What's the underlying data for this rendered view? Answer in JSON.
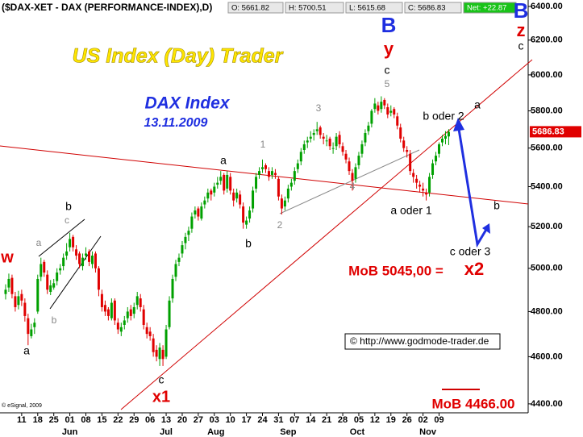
{
  "chart_data": {
    "type": "candlestick",
    "legend_header": {
      "title": "($DAX-XET - DAX (PERFORMANCE-INDEX),D)",
      "fields": [
        "O: 5661.82",
        "H: 5700.51",
        "L: 5615.68",
        "C: 5686.83",
        "Net: +22.87"
      ]
    },
    "log_scale": true,
    "ylim": [
      4363,
      6439
    ],
    "xlim": [
      -1.75,
      162.75
    ],
    "yticks": [
      {
        "value": 4400,
        "label": "4400.00"
      },
      {
        "value": 4600,
        "label": "4600.00"
      },
      {
        "value": 4800,
        "label": "4800.00"
      },
      {
        "value": 5000,
        "label": "5000.00"
      },
      {
        "value": 5200,
        "label": "5200.00"
      },
      {
        "value": 5400,
        "label": "5400.00"
      },
      {
        "value": 5600,
        "label": "5600.00"
      },
      {
        "value": 5800,
        "label": "5800.00"
      },
      {
        "value": 6000,
        "label": "6000.00"
      },
      {
        "value": 6200,
        "label": "6200.00"
      },
      {
        "value": 6400,
        "label": "6400.00"
      }
    ],
    "xticks": [
      {
        "value": 5,
        "label": "11"
      },
      {
        "value": 10,
        "label": "18"
      },
      {
        "value": 15,
        "label": "25"
      },
      {
        "value": 20,
        "label": "01"
      },
      {
        "value": 25,
        "label": "08"
      },
      {
        "value": 30,
        "label": "15"
      },
      {
        "value": 35,
        "label": "22"
      },
      {
        "value": 40,
        "label": "29"
      },
      {
        "value": 45,
        "label": "06"
      },
      {
        "value": 50,
        "label": "13"
      },
      {
        "value": 55,
        "label": "20"
      },
      {
        "value": 60,
        "label": "27"
      },
      {
        "value": 65,
        "label": "03"
      },
      {
        "value": 70,
        "label": "10"
      },
      {
        "value": 75,
        "label": "17"
      },
      {
        "value": 80,
        "label": "24"
      },
      {
        "value": 85,
        "label": "31"
      },
      {
        "value": 90,
        "label": "07"
      },
      {
        "value": 95,
        "label": "14"
      },
      {
        "value": 100,
        "label": "21"
      },
      {
        "value": 105,
        "label": "28"
      },
      {
        "value": 110,
        "label": "05"
      },
      {
        "value": 115,
        "label": "12"
      },
      {
        "value": 120,
        "label": "19"
      },
      {
        "value": 125,
        "label": "26"
      },
      {
        "value": 130,
        "label": "02"
      },
      {
        "value": 135,
        "label": "09"
      }
    ],
    "months": [
      {
        "value": 20,
        "label": "Jun"
      },
      {
        "value": 50,
        "label": "Jul"
      },
      {
        "value": 65.5,
        "label": "Aug"
      },
      {
        "value": 88,
        "label": "Sep"
      },
      {
        "value": 109.5,
        "label": "Oct"
      },
      {
        "value": 131.5,
        "label": "Nov"
      }
    ],
    "up_color": "#00a000",
    "down_color": "#e00000",
    "price_tag": 5686.83,
    "candles": [
      [
        4880,
        4925,
        4855,
        4900
      ],
      [
        4910,
        4975,
        4890,
        4950
      ],
      [
        4955,
        4970,
        4860,
        4880
      ],
      [
        4870,
        4890,
        4800,
        4820
      ],
      [
        4830,
        4895,
        4810,
        4870
      ],
      [
        4880,
        4900,
        4825,
        4850
      ],
      [
        4840,
        4860,
        4755,
        4780
      ],
      [
        4770,
        4790,
        4650,
        4700
      ],
      [
        4690,
        4745,
        4680,
        4720
      ],
      [
        4730,
        4770,
        4700,
        4750
      ],
      [
        4800,
        4970,
        4790,
        4950
      ],
      [
        4960,
        5050,
        4940,
        5020
      ],
      [
        5030,
        5040,
        4960,
        4980
      ],
      [
        4970,
        4990,
        4880,
        4900
      ],
      [
        4890,
        4945,
        4875,
        4920
      ],
      [
        4910,
        4950,
        4900,
        4930
      ],
      [
        4940,
        5000,
        4920,
        4980
      ],
      [
        4990,
        5020,
        4970,
        5000
      ],
      [
        5010,
        5070,
        4990,
        5050
      ],
      [
        5060,
        5120,
        5040,
        5080
      ],
      [
        5100,
        5170,
        5080,
        5140
      ],
      [
        5150,
        5160,
        5080,
        5100
      ],
      [
        5090,
        5110,
        5040,
        5060
      ],
      [
        5070,
        5080,
        5000,
        5020
      ],
      [
        5010,
        5070,
        4990,
        5050
      ],
      [
        5060,
        5100,
        5040,
        5070
      ],
      [
        5080,
        5090,
        5010,
        5030
      ],
      [
        5020,
        5080,
        5000,
        5060
      ],
      [
        5070,
        5080,
        4980,
        5000
      ],
      [
        5000,
        5010,
        4870,
        4900
      ],
      [
        4880,
        4900,
        4800,
        4820
      ],
      [
        4830,
        4850,
        4780,
        4800
      ],
      [
        4810,
        4820,
        4760,
        4780
      ],
      [
        4770,
        4860,
        4760,
        4840
      ],
      [
        4850,
        4860,
        4740,
        4760
      ],
      [
        4750,
        4770,
        4700,
        4720
      ],
      [
        4710,
        4750,
        4690,
        4730
      ],
      [
        4740,
        4780,
        4720,
        4760
      ],
      [
        4770,
        4820,
        4750,
        4800
      ],
      [
        4810,
        4830,
        4760,
        4780
      ],
      [
        4790,
        4840,
        4770,
        4820
      ],
      [
        4830,
        4890,
        4810,
        4870
      ],
      [
        4860,
        4880,
        4800,
        4820
      ],
      [
        4810,
        4830,
        4720,
        4740
      ],
      [
        4730,
        4750,
        4680,
        4700
      ],
      [
        4710,
        4730,
        4670,
        4690
      ],
      [
        4680,
        4700,
        4600,
        4620
      ],
      [
        4630,
        4650,
        4580,
        4600
      ],
      [
        4590,
        4660,
        4560,
        4640
      ],
      [
        4630,
        4650,
        4560,
        4590
      ],
      [
        4600,
        4740,
        4590,
        4720
      ],
      [
        4730,
        4870,
        4720,
        4850
      ],
      [
        4860,
        4970,
        4840,
        4950
      ],
      [
        4960,
        5040,
        4940,
        5020
      ],
      [
        5030,
        5070,
        5010,
        5050
      ],
      [
        5070,
        5130,
        5050,
        5110
      ],
      [
        5120,
        5170,
        5090,
        5150
      ],
      [
        5160,
        5200,
        5130,
        5180
      ],
      [
        5190,
        5270,
        5170,
        5250
      ],
      [
        5260,
        5300,
        5240,
        5280
      ],
      [
        5290,
        5300,
        5230,
        5250
      ],
      [
        5240,
        5320,
        5230,
        5300
      ],
      [
        5310,
        5350,
        5290,
        5330
      ],
      [
        5340,
        5390,
        5320,
        5370
      ],
      [
        5380,
        5390,
        5330,
        5360
      ],
      [
        5370,
        5420,
        5350,
        5400
      ],
      [
        5410,
        5450,
        5390,
        5420
      ],
      [
        5430,
        5480,
        5410,
        5450
      ],
      [
        5460,
        5470,
        5360,
        5380
      ],
      [
        5390,
        5480,
        5370,
        5460
      ],
      [
        5450,
        5470,
        5360,
        5380
      ],
      [
        5370,
        5390,
        5300,
        5330
      ],
      [
        5340,
        5390,
        5320,
        5370
      ],
      [
        5360,
        5380,
        5290,
        5310
      ],
      [
        5300,
        5320,
        5190,
        5220
      ],
      [
        5210,
        5250,
        5190,
        5230
      ],
      [
        5240,
        5300,
        5220,
        5280
      ],
      [
        5290,
        5400,
        5270,
        5380
      ],
      [
        5390,
        5470,
        5370,
        5450
      ],
      [
        5460,
        5500,
        5440,
        5480
      ],
      [
        5490,
        5540,
        5470,
        5500
      ],
      [
        5510,
        5520,
        5470,
        5490
      ],
      [
        5480,
        5500,
        5430,
        5450
      ],
      [
        5460,
        5500,
        5440,
        5480
      ],
      [
        5470,
        5490,
        5440,
        5460
      ],
      [
        5440,
        5450,
        5330,
        5350
      ],
      [
        5340,
        5360,
        5260,
        5290
      ],
      [
        5300,
        5350,
        5280,
        5330
      ],
      [
        5340,
        5410,
        5320,
        5390
      ],
      [
        5400,
        5440,
        5380,
        5420
      ],
      [
        5430,
        5500,
        5410,
        5480
      ],
      [
        5490,
        5540,
        5470,
        5520
      ],
      [
        5530,
        5600,
        5510,
        5580
      ],
      [
        5590,
        5640,
        5570,
        5620
      ],
      [
        5630,
        5660,
        5600,
        5640
      ],
      [
        5650,
        5690,
        5630,
        5660
      ],
      [
        5670,
        5700,
        5640,
        5680
      ],
      [
        5690,
        5740,
        5670,
        5700
      ],
      [
        5710,
        5720,
        5650,
        5670
      ],
      [
        5660,
        5680,
        5620,
        5650
      ],
      [
        5640,
        5670,
        5610,
        5640
      ],
      [
        5650,
        5660,
        5590,
        5610
      ],
      [
        5600,
        5630,
        5570,
        5600
      ],
      [
        5610,
        5680,
        5590,
        5660
      ],
      [
        5670,
        5690,
        5600,
        5620
      ],
      [
        5610,
        5630,
        5560,
        5580
      ],
      [
        5570,
        5590,
        5520,
        5540
      ],
      [
        5530,
        5550,
        5460,
        5480
      ],
      [
        5470,
        5490,
        5380,
        5430
      ],
      [
        5440,
        5520,
        5420,
        5500
      ],
      [
        5510,
        5580,
        5490,
        5560
      ],
      [
        5570,
        5640,
        5550,
        5620
      ],
      [
        5630,
        5700,
        5610,
        5680
      ],
      [
        5690,
        5740,
        5670,
        5720
      ],
      [
        5730,
        5810,
        5710,
        5800
      ],
      [
        5810,
        5870,
        5790,
        5840
      ],
      [
        5830,
        5850,
        5780,
        5800
      ],
      [
        5810,
        5880,
        5790,
        5850
      ],
      [
        5860,
        5870,
        5810,
        5830
      ],
      [
        5820,
        5840,
        5760,
        5780
      ],
      [
        5790,
        5830,
        5770,
        5800
      ],
      [
        5810,
        5820,
        5760,
        5780
      ],
      [
        5770,
        5790,
        5700,
        5720
      ],
      [
        5710,
        5730,
        5630,
        5650
      ],
      [
        5640,
        5660,
        5580,
        5600
      ],
      [
        5590,
        5610,
        5550,
        5580
      ],
      [
        5570,
        5590,
        5460,
        5480
      ],
      [
        5470,
        5490,
        5420,
        5450
      ],
      [
        5440,
        5460,
        5390,
        5420
      ],
      [
        5410,
        5430,
        5370,
        5400
      ],
      [
        5390,
        5420,
        5350,
        5380
      ],
      [
        5370,
        5390,
        5330,
        5360
      ],
      [
        5370,
        5470,
        5350,
        5450
      ],
      [
        5460,
        5540,
        5440,
        5520
      ],
      [
        5530,
        5580,
        5510,
        5560
      ],
      [
        5570,
        5630,
        5550,
        5620
      ],
      [
        5630,
        5670,
        5610,
        5650
      ],
      [
        5650,
        5690,
        5620,
        5664
      ],
      [
        5661.82,
        5700.51,
        5615.68,
        5686.83
      ]
    ],
    "annotations": [
      "US Index (Day) Trader",
      "DAX Index",
      "13.11.2009",
      "B",
      "y",
      "c",
      "5",
      "B",
      "z",
      "c",
      "w",
      "b",
      "c",
      "a",
      "b",
      "a",
      "c",
      "x1",
      "a",
      "1",
      "b",
      "2",
      "3",
      "4",
      "b oder 2",
      "a",
      "a oder 1",
      "b",
      "c oder 3",
      "MoB 5045,00 =",
      "x2",
      "MoB 4466.00",
      "© http://www.godmode-trader.de",
      "© eSignal, 2009"
    ]
  }
}
